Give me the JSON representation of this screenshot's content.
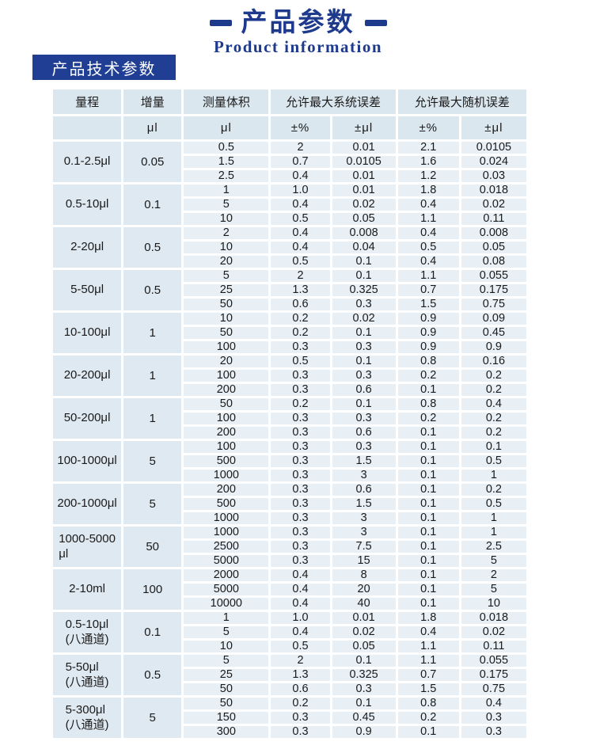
{
  "page": {
    "title": "产品参数",
    "subtitle": "Product information",
    "section_badge": "产品技术参数"
  },
  "colors": {
    "accent_navy": "#1e3a8c",
    "badge_bg": "#1f3e94",
    "header_cell_bg": "#dbe7ef",
    "group_cell_bg": "#dfe9f1",
    "data_cell_bg": "#e8f0f6",
    "text": "#1a1a1a"
  },
  "table": {
    "headers": {
      "range": "量程",
      "increment": "增量",
      "volume": "测量体积",
      "sys_error": "允许最大系统误差",
      "rand_error": "允许最大随机误差",
      "unit_ul": "μl",
      "unit_pct": "±%",
      "unit_pm_ul": "±μl"
    },
    "columns_per_row": [
      "volume",
      "sys_pct",
      "sys_ul",
      "rand_pct",
      "rand_ul"
    ],
    "groups": [
      {
        "range": "0.1-2.5μl",
        "increment": "0.05",
        "rows": [
          [
            "0.5",
            "2",
            "0.01",
            "2.1",
            "0.0105"
          ],
          [
            "1.5",
            "0.7",
            "0.0105",
            "1.6",
            "0.024"
          ],
          [
            "2.5",
            "0.4",
            "0.01",
            "1.2",
            "0.03"
          ]
        ]
      },
      {
        "range": "0.5-10μl",
        "increment": "0.1",
        "rows": [
          [
            "1",
            "1.0",
            "0.01",
            "1.8",
            "0.018"
          ],
          [
            "5",
            "0.4",
            "0.02",
            "0.4",
            "0.02"
          ],
          [
            "10",
            "0.5",
            "0.05",
            "1.1",
            "0.11"
          ]
        ]
      },
      {
        "range": "2-20μl",
        "increment": "0.5",
        "rows": [
          [
            "2",
            "0.4",
            "0.008",
            "0.4",
            "0.008"
          ],
          [
            "10",
            "0.4",
            "0.04",
            "0.5",
            "0.05"
          ],
          [
            "20",
            "0.5",
            "0.1",
            "0.4",
            "0.08"
          ]
        ]
      },
      {
        "range": "5-50μl",
        "increment": "0.5",
        "rows": [
          [
            "5",
            "2",
            "0.1",
            "1.1",
            "0.055"
          ],
          [
            "25",
            "1.3",
            "0.325",
            "0.7",
            "0.175"
          ],
          [
            "50",
            "0.6",
            "0.3",
            "1.5",
            "0.75"
          ]
        ]
      },
      {
        "range": "10-100μl",
        "increment": "1",
        "rows": [
          [
            "10",
            "0.2",
            "0.02",
            "0.9",
            "0.09"
          ],
          [
            "50",
            "0.2",
            "0.1",
            "0.9",
            "0.45"
          ],
          [
            "100",
            "0.3",
            "0.3",
            "0.9",
            "0.9"
          ]
        ]
      },
      {
        "range": "20-200μl",
        "increment": "1",
        "rows": [
          [
            "20",
            "0.5",
            "0.1",
            "0.8",
            "0.16"
          ],
          [
            "100",
            "0.3",
            "0.3",
            "0.2",
            "0.2"
          ],
          [
            "200",
            "0.3",
            "0.6",
            "0.1",
            "0.2"
          ]
        ]
      },
      {
        "range": "50-200μl",
        "increment": "1",
        "rows": [
          [
            "50",
            "0.2",
            "0.1",
            "0.8",
            "0.4"
          ],
          [
            "100",
            "0.3",
            "0.3",
            "0.2",
            "0.2"
          ],
          [
            "200",
            "0.3",
            "0.6",
            "0.1",
            "0.2"
          ]
        ]
      },
      {
        "range": "100-1000μl",
        "increment": "5",
        "rows": [
          [
            "100",
            "0.3",
            "0.3",
            "0.1",
            "0.1"
          ],
          [
            "500",
            "0.3",
            "1.5",
            "0.1",
            "0.5"
          ],
          [
            "1000",
            "0.3",
            "3",
            "0.1",
            "1"
          ]
        ]
      },
      {
        "range": "200-1000μl",
        "increment": "5",
        "rows": [
          [
            "200",
            "0.3",
            "0.6",
            "0.1",
            "0.2"
          ],
          [
            "500",
            "0.3",
            "1.5",
            "0.1",
            "0.5"
          ],
          [
            "1000",
            "0.3",
            "3",
            "0.1",
            "1"
          ]
        ]
      },
      {
        "range": "1000-5000\nμl",
        "increment": "50",
        "rows": [
          [
            "1000",
            "0.3",
            "3",
            "0.1",
            "1"
          ],
          [
            "2500",
            "0.3",
            "7.5",
            "0.1",
            "2.5"
          ],
          [
            "5000",
            "0.3",
            "15",
            "0.1",
            "5"
          ]
        ]
      },
      {
        "range": "2-10ml",
        "increment": "100",
        "rows": [
          [
            "2000",
            "0.4",
            "8",
            "0.1",
            "2"
          ],
          [
            "5000",
            "0.4",
            "20",
            "0.1",
            "5"
          ],
          [
            "10000",
            "0.4",
            "40",
            "0.1",
            "10"
          ]
        ]
      },
      {
        "range": "0.5-10μl\n(八通道)",
        "increment": "0.1",
        "rows": [
          [
            "1",
            "1.0",
            "0.01",
            "1.8",
            "0.018"
          ],
          [
            "5",
            "0.4",
            "0.02",
            "0.4",
            "0.02"
          ],
          [
            "10",
            "0.5",
            "0.05",
            "1.1",
            "0.11"
          ]
        ]
      },
      {
        "range": "5-50μl\n(八通道)",
        "increment": "0.5",
        "rows": [
          [
            "5",
            "2",
            "0.1",
            "1.1",
            "0.055"
          ],
          [
            "25",
            "1.3",
            "0.325",
            "0.7",
            "0.175"
          ],
          [
            "50",
            "0.6",
            "0.3",
            "1.5",
            "0.75"
          ]
        ]
      },
      {
        "range": "5-300μl\n(八通道)",
        "increment": "5",
        "rows": [
          [
            "50",
            "0.2",
            "0.1",
            "0.8",
            "0.4"
          ],
          [
            "150",
            "0.3",
            "0.45",
            "0.2",
            "0.3"
          ],
          [
            "300",
            "0.3",
            "0.9",
            "0.1",
            "0.3"
          ]
        ]
      }
    ]
  }
}
